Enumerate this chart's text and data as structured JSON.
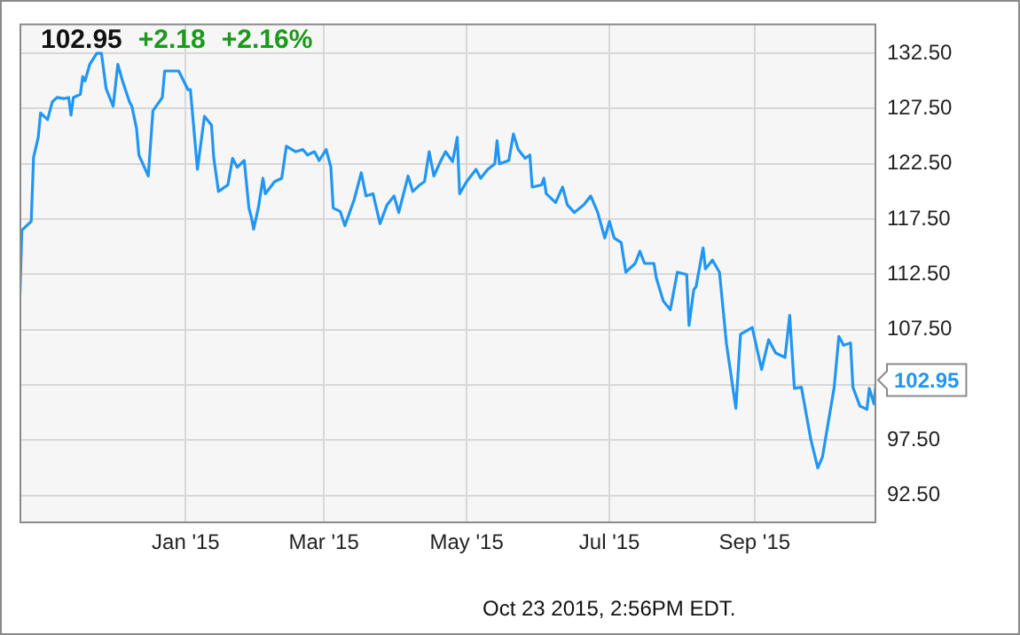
{
  "chart_data": {
    "type": "line",
    "x": [
      "2014-10-22",
      "2014-10-23",
      "2014-10-27",
      "2014-10-28",
      "2014-10-30",
      "2014-10-31",
      "2014-11-03",
      "2014-11-05",
      "2014-11-07",
      "2014-11-10",
      "2014-11-12",
      "2014-11-13",
      "2014-11-14",
      "2014-11-17",
      "2014-11-18",
      "2014-11-19",
      "2014-11-21",
      "2014-11-24",
      "2014-11-26",
      "2014-11-28",
      "2014-12-01",
      "2014-12-03",
      "2014-12-05",
      "2014-12-08",
      "2014-12-09",
      "2014-12-11",
      "2014-12-12",
      "2014-12-16",
      "2014-12-18",
      "2014-12-22",
      "2014-12-23",
      "2014-12-29",
      "2015-01-02",
      "2015-01-03",
      "2015-01-06",
      "2015-01-09",
      "2015-01-12",
      "2015-01-13",
      "2015-01-15",
      "2015-01-19",
      "2015-01-21",
      "2015-01-23",
      "2015-01-26",
      "2015-01-28",
      "2015-01-29",
      "2015-01-30",
      "2015-02-01",
      "2015-02-03",
      "2015-02-04",
      "2015-02-08",
      "2015-02-11",
      "2015-02-13",
      "2015-02-17",
      "2015-02-20",
      "2015-02-22",
      "2015-02-25",
      "2015-02-27",
      "2015-03-02",
      "2015-03-04",
      "2015-03-05",
      "2015-03-08",
      "2015-03-10",
      "2015-03-12",
      "2015-03-14",
      "2015-03-17",
      "2015-03-19",
      "2015-03-22",
      "2015-03-25",
      "2015-03-28",
      "2015-03-31",
      "2015-04-02",
      "2015-04-06",
      "2015-04-08",
      "2015-04-11",
      "2015-04-13",
      "2015-04-15",
      "2015-04-17",
      "2015-04-20",
      "2015-04-22",
      "2015-04-25",
      "2015-04-27",
      "2015-04-28",
      "2015-05-01",
      "2015-05-05",
      "2015-05-07",
      "2015-05-10",
      "2015-05-13",
      "2015-05-14",
      "2015-05-15",
      "2015-05-19",
      "2015-05-21",
      "2015-05-23",
      "2015-05-26",
      "2015-05-28",
      "2015-05-29",
      "2015-06-02",
      "2015-06-03",
      "2015-06-04",
      "2015-06-08",
      "2015-06-11",
      "2015-06-13",
      "2015-06-16",
      "2015-06-20",
      "2015-06-23",
      "2015-06-26",
      "2015-06-29",
      "2015-07-01",
      "2015-07-03",
      "2015-07-06",
      "2015-07-08",
      "2015-07-12",
      "2015-07-14",
      "2015-07-16",
      "2015-07-20",
      "2015-07-21",
      "2015-07-24",
      "2015-07-27",
      "2015-07-30",
      "2015-08-03",
      "2015-08-04",
      "2015-08-06",
      "2015-08-07",
      "2015-08-10",
      "2015-08-11",
      "2015-08-14",
      "2015-08-17",
      "2015-08-20",
      "2015-08-24",
      "2015-08-26",
      "2015-08-31",
      "2015-09-02",
      "2015-09-04",
      "2015-09-07",
      "2015-09-10",
      "2015-09-14",
      "2015-09-16",
      "2015-09-18",
      "2015-09-21",
      "2015-09-25",
      "2015-09-28",
      "2015-09-30",
      "2015-10-05",
      "2015-10-07",
      "2015-10-09",
      "2015-10-12",
      "2015-10-13",
      "2015-10-16",
      "2015-10-19",
      "2015-10-20",
      "2015-10-22",
      "2015-10-23"
    ],
    "series": [
      {
        "color": "#2196f3",
        "values": [
          109.3,
          116.5,
          117.3,
          123.1,
          124.9,
          127.1,
          126.5,
          128.1,
          128.5,
          128.4,
          128.5,
          126.9,
          128.5,
          128.8,
          130.4,
          130.0,
          131.5,
          132.5,
          132.5,
          129.3,
          127.7,
          131.5,
          130.0,
          128.1,
          127.7,
          125.7,
          123.3,
          121.4,
          127.3,
          128.5,
          130.9,
          130.9,
          129.2,
          129.2,
          122.0,
          126.8,
          126.0,
          123.0,
          120.0,
          120.6,
          123.0,
          122.2,
          122.8,
          118.5,
          117.7,
          116.6,
          118.5,
          121.2,
          119.8,
          120.9,
          121.2,
          124.1,
          123.6,
          123.8,
          123.3,
          123.6,
          122.8,
          123.8,
          122.2,
          118.5,
          118.2,
          116.9,
          118.1,
          119.3,
          121.7,
          119.6,
          119.8,
          117.1,
          118.8,
          119.6,
          118.1,
          121.4,
          120.0,
          120.6,
          120.9,
          123.6,
          121.4,
          122.8,
          123.6,
          122.7,
          124.9,
          119.8,
          120.9,
          122.0,
          121.2,
          122.0,
          122.5,
          124.6,
          122.5,
          122.8,
          125.2,
          123.8,
          123.0,
          123.3,
          120.4,
          120.6,
          121.2,
          119.8,
          119.0,
          120.4,
          118.8,
          118.1,
          118.8,
          119.6,
          118.1,
          115.8,
          117.3,
          115.8,
          115.4,
          112.7,
          113.5,
          114.6,
          113.5,
          113.5,
          112.2,
          110.1,
          109.3,
          112.7,
          112.5,
          107.9,
          111.1,
          111.4,
          114.9,
          113.0,
          113.8,
          112.7,
          106.2,
          100.4,
          107.1,
          107.7,
          105.8,
          103.9,
          106.6,
          105.4,
          105.0,
          108.8,
          102.2,
          102.3,
          97.6,
          95.0,
          96.0,
          102.3,
          106.9,
          106.1,
          106.3,
          102.3,
          100.6,
          100.3,
          102.2,
          100.8,
          102.95
        ]
      }
    ],
    "xlim": [
      "2014-10-22",
      "2015-10-23"
    ],
    "xticks": [
      {
        "value": "2015-01-01",
        "label": "Jan '15"
      },
      {
        "value": "2015-03-01",
        "label": "Mar '15"
      },
      {
        "value": "2015-05-01",
        "label": "May '15"
      },
      {
        "value": "2015-07-01",
        "label": "Jul '15"
      },
      {
        "value": "2015-09-01",
        "label": "Sep '15"
      }
    ],
    "ylim": [
      90,
      135.2
    ],
    "yticks": [
      {
        "value": 92.5,
        "label": "92.50"
      },
      {
        "value": 97.5,
        "label": "97.50"
      },
      {
        "value": 102.5,
        "label": null
      },
      {
        "value": 107.5,
        "label": "107.50"
      },
      {
        "value": 112.5,
        "label": "112.50"
      },
      {
        "value": 117.5,
        "label": "117.50"
      },
      {
        "value": 122.5,
        "label": "122.50"
      },
      {
        "value": 127.5,
        "label": "127.50"
      },
      {
        "value": 132.5,
        "label": "132.50"
      }
    ],
    "annotations": [
      "102.95",
      "+2.18",
      "+2.16%",
      {
        "text": "102.95",
        "x": "2015-10-23",
        "y": 102.95
      },
      "Oct 23 2015, 2:56PM EDT."
    ],
    "grid": true,
    "legend": false,
    "marker": "none",
    "line_style": "solid"
  }
}
